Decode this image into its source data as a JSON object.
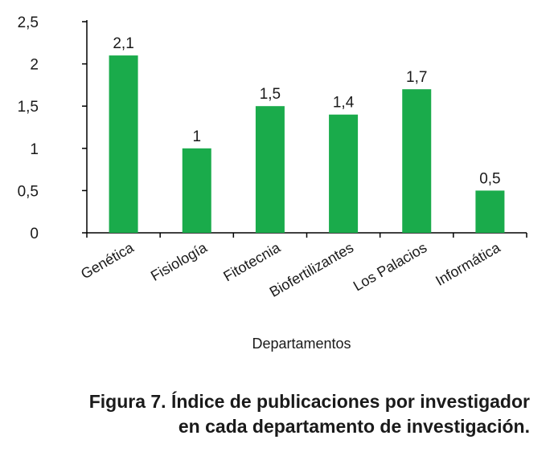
{
  "chart_data": {
    "type": "bar",
    "categories": [
      "Genética",
      "Fisiología",
      "Fitotecnia",
      "Biofertilizantes",
      "Los Palacios",
      "Informática"
    ],
    "values": [
      2.1,
      1,
      1.5,
      1.4,
      1.7,
      0.5
    ],
    "value_labels": [
      "2,1",
      "1",
      "1,5",
      "1,4",
      "1,7",
      "0,5"
    ],
    "xlabel": "Departamentos",
    "ylabel": "",
    "ylim": [
      0,
      2.5
    ],
    "yticks": [
      0,
      0.5,
      1,
      1.5,
      2,
      2.5
    ],
    "ytick_labels": [
      "0",
      "0,5",
      "1",
      "1,5",
      "2",
      "2,5"
    ],
    "bar_color": "#1aab4b",
    "grid": false,
    "legend": "none"
  },
  "caption": {
    "line1": "Figura 7. Índice de publicaciones por investigador",
    "line2": "en cada departamento de investigación."
  }
}
